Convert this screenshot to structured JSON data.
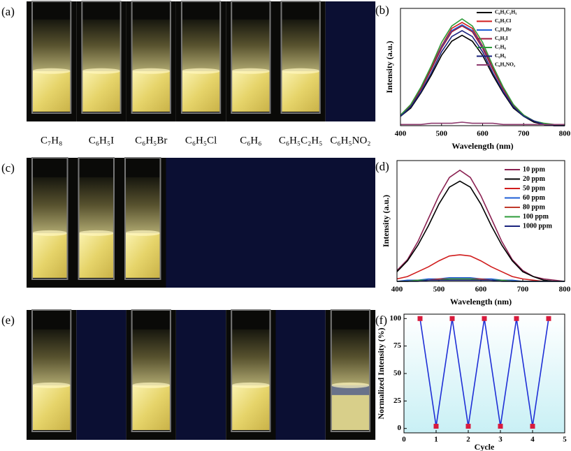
{
  "photo_panels": [
    {
      "label": "(a)",
      "captions": [
        "C₇H₈",
        "C₆H₅I",
        "C₆H₅Br",
        "C₆H₅Cl",
        "C₆H₆",
        "C₆H₅C₂H₅",
        "C₆H₅NO₂"
      ]
    },
    {
      "label": "(c)"
    },
    {
      "label": "(e)"
    }
  ],
  "chart_data": [
    {
      "type": "line",
      "panel_label": "(b)",
      "x_label": "Wavelength (nm)",
      "y_label": "Intensity (a.u.)",
      "x": [
        400,
        425,
        450,
        475,
        500,
        525,
        550,
        575,
        600,
        625,
        650,
        675,
        700,
        725,
        750,
        775,
        800
      ],
      "xlim": [
        400,
        800
      ],
      "xticks": [
        400,
        500,
        600,
        700,
        800
      ],
      "ylim": [
        0,
        100
      ],
      "legend": "upper right",
      "series": [
        {
          "name": "C₆H₅C₂H₅",
          "color": "#000000",
          "values": [
            8,
            15,
            28,
            43,
            60,
            72,
            77,
            72,
            60,
            43,
            28,
            15,
            8,
            3,
            1,
            0,
            0
          ]
        },
        {
          "name": "C₆H₅Cl",
          "color": "#d01c1c",
          "values": [
            9,
            18,
            32,
            50,
            68,
            83,
            88,
            83,
            68,
            50,
            32,
            18,
            9,
            4,
            1,
            1,
            0
          ]
        },
        {
          "name": "C₆H₅Br",
          "color": "#1f5fd6",
          "values": [
            9,
            17,
            31,
            48,
            67,
            81,
            86,
            81,
            67,
            48,
            31,
            17,
            9,
            4,
            1,
            0,
            0
          ]
        },
        {
          "name": "C₆H₅I",
          "color": "#9c1a3c",
          "values": [
            9,
            17,
            31,
            48,
            66,
            80,
            85,
            80,
            66,
            48,
            31,
            17,
            9,
            4,
            1,
            0,
            0
          ]
        },
        {
          "name": "C₇H₈",
          "color": "#2e9b3a",
          "values": [
            9,
            18,
            33,
            51,
            71,
            85,
            91,
            85,
            71,
            51,
            33,
            18,
            9,
            4,
            2,
            1,
            0
          ]
        },
        {
          "name": "C₆H₆",
          "color": "#1a237e",
          "values": [
            8,
            16,
            29,
            45,
            63,
            76,
            81,
            76,
            63,
            45,
            29,
            16,
            8,
            4,
            1,
            0,
            0
          ]
        },
        {
          "name": "C₆H₅NO₂",
          "color": "#8e3a6e",
          "values": [
            1,
            1,
            1,
            2,
            2,
            2,
            3,
            2,
            2,
            2,
            1,
            1,
            1,
            1,
            1,
            1,
            1
          ]
        }
      ]
    },
    {
      "type": "line",
      "panel_label": "(d)",
      "x_label": "Wavelength (nm)",
      "y_label": "Intensity (a.u.)",
      "x": [
        400,
        425,
        450,
        475,
        500,
        525,
        550,
        575,
        600,
        625,
        650,
        675,
        700,
        725,
        750,
        775,
        800
      ],
      "xlim": [
        400,
        800
      ],
      "xticks": [
        400,
        500,
        600,
        700,
        800
      ],
      "ylim": [
        0,
        100
      ],
      "legend": "upper right",
      "series": [
        {
          "name": "10 ppm",
          "color": "#8b2252",
          "values": [
            9,
            18,
            33,
            52,
            71,
            86,
            92,
            86,
            71,
            52,
            33,
            18,
            9,
            4,
            2,
            1,
            0
          ]
        },
        {
          "name": "20 ppm",
          "color": "#000000",
          "values": [
            8,
            17,
            30,
            46,
            64,
            78,
            83,
            78,
            64,
            46,
            30,
            17,
            8,
            4,
            1,
            0,
            0
          ]
        },
        {
          "name": "50 ppm",
          "color": "#d01c1c",
          "values": [
            2,
            4,
            8,
            12,
            17,
            21,
            22,
            21,
            17,
            12,
            8,
            4,
            2,
            1,
            0,
            0,
            0
          ]
        },
        {
          "name": "60 ppm",
          "color": "#1f5fd6",
          "values": [
            0,
            1,
            1,
            2,
            2,
            3,
            3,
            3,
            2,
            2,
            1,
            1,
            0,
            0,
            0,
            0,
            0
          ]
        },
        {
          "name": "80 ppm",
          "color": "#c0392b",
          "values": [
            0,
            0,
            1,
            1,
            2,
            2,
            2,
            2,
            2,
            1,
            1,
            0,
            0,
            0,
            0,
            0,
            0
          ]
        },
        {
          "name": "100 ppm",
          "color": "#2e9b3a",
          "values": [
            0,
            0,
            1,
            1,
            1,
            2,
            2,
            2,
            1,
            1,
            1,
            0,
            0,
            0,
            0,
            0,
            0
          ]
        },
        {
          "name": "1000 ppm",
          "color": "#1a237e",
          "values": [
            0,
            0,
            0,
            1,
            1,
            1,
            1,
            1,
            1,
            1,
            0,
            0,
            0,
            0,
            0,
            0,
            0
          ]
        }
      ]
    },
    {
      "type": "line",
      "panel_label": "(f)",
      "x_label": "Cycle",
      "y_label": "Normalized Intensity (%)",
      "x": [
        0.5,
        1,
        1.5,
        2,
        2.5,
        3,
        3.5,
        4,
        4.5
      ],
      "xlim": [
        0,
        5
      ],
      "xticks": [
        0,
        1,
        2,
        3,
        4,
        5
      ],
      "ylim": [
        -4,
        104
      ],
      "yticks": [
        0,
        25,
        50,
        75,
        100
      ],
      "plot_background": "#dff6f8",
      "marker": "square",
      "marker_color": "#d81b3c",
      "series": [
        {
          "color": "#1f2fd6",
          "values": [
            100,
            2,
            100,
            2,
            100,
            2,
            100,
            2,
            100
          ]
        }
      ]
    }
  ]
}
